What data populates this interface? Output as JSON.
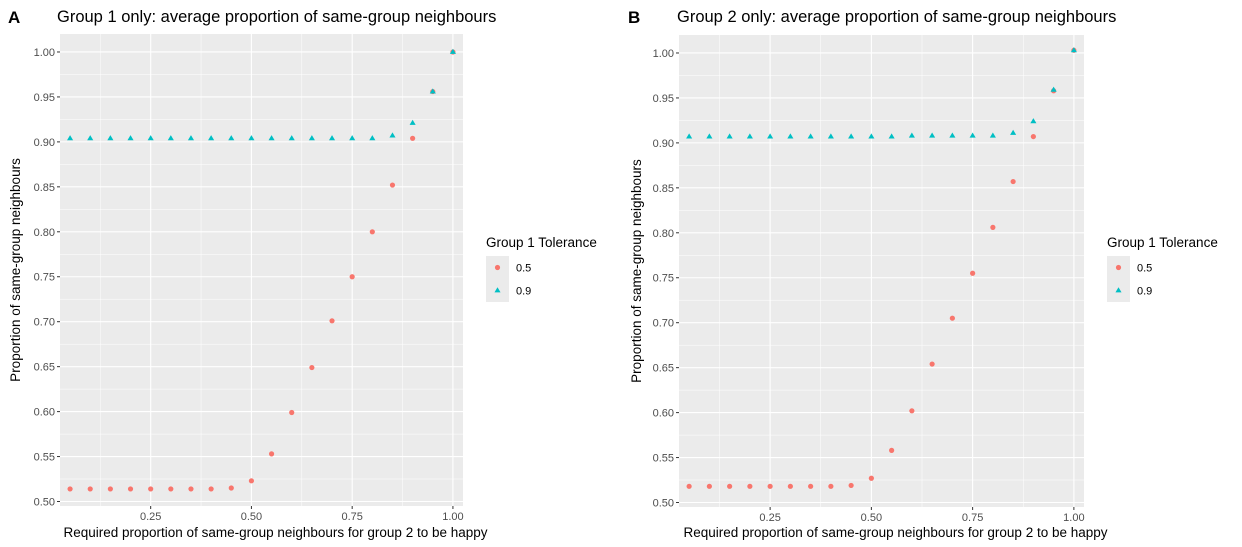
{
  "chart_data": [
    {
      "panel_label": "A",
      "type": "scatter",
      "title": "Group 1 only: average proportion of same-group neighbours",
      "xlabel": "Required proportion of same-group neighbours for group 2 to be happy",
      "ylabel": "Proportion of same-group neighbours",
      "xlim": [
        0.025,
        1.025
      ],
      "ylim": [
        0.495,
        1.02
      ],
      "x_ticks": [
        0.25,
        0.5,
        0.75,
        1.0
      ],
      "x_tick_labels": [
        "0.25",
        "0.50",
        "0.75",
        "1.00"
      ],
      "y_ticks": [
        0.5,
        0.55,
        0.6,
        0.65,
        0.7,
        0.75,
        0.8,
        0.85,
        0.9,
        0.95,
        1.0
      ],
      "y_tick_labels": [
        "0.50",
        "0.55",
        "0.60",
        "0.65",
        "0.70",
        "0.75",
        "0.80",
        "0.85",
        "0.90",
        "0.95",
        "1.00"
      ],
      "grid": true,
      "legend": {
        "title": "Group 1 Tolerance",
        "position": "right"
      },
      "x": [
        0.05,
        0.1,
        0.15,
        0.2,
        0.25,
        0.3,
        0.35,
        0.4,
        0.45,
        0.5,
        0.55,
        0.6,
        0.65,
        0.7,
        0.75,
        0.8,
        0.85,
        0.9,
        0.95,
        1.0
      ],
      "series": [
        {
          "name": "0.5",
          "color": "#F8766D",
          "marker": "circle",
          "values": [
            0.514,
            0.514,
            0.514,
            0.514,
            0.514,
            0.514,
            0.514,
            0.514,
            0.515,
            0.523,
            0.553,
            0.599,
            0.649,
            0.701,
            0.75,
            0.8,
            0.852,
            0.904,
            0.956,
            1.0
          ]
        },
        {
          "name": "0.9",
          "color": "#00BFC4",
          "marker": "triangle",
          "values": [
            0.904,
            0.904,
            0.904,
            0.904,
            0.904,
            0.904,
            0.904,
            0.904,
            0.904,
            0.904,
            0.904,
            0.904,
            0.904,
            0.904,
            0.904,
            0.904,
            0.907,
            0.921,
            0.956,
            1.0
          ]
        }
      ]
    },
    {
      "panel_label": "B",
      "type": "scatter",
      "title": "Group 2 only: average proportion of same-group neighbours",
      "xlabel": "Required proportion of same-group neighbours for group 2 to be happy",
      "ylabel": "Proportion of same-group neighbours",
      "xlim": [
        0.025,
        1.025
      ],
      "ylim": [
        0.495,
        1.02
      ],
      "x_ticks": [
        0.25,
        0.5,
        0.75,
        1.0
      ],
      "x_tick_labels": [
        "0.25",
        "0.50",
        "0.75",
        "1.00"
      ],
      "y_ticks": [
        0.5,
        0.55,
        0.6,
        0.65,
        0.7,
        0.75,
        0.8,
        0.85,
        0.9,
        0.95,
        1.0
      ],
      "y_tick_labels": [
        "0.50",
        "0.55",
        "0.60",
        "0.65",
        "0.70",
        "0.75",
        "0.80",
        "0.85",
        "0.90",
        "0.95",
        "1.00"
      ],
      "grid": true,
      "legend": {
        "title": "Group 1 Tolerance",
        "position": "right"
      },
      "x": [
        0.05,
        0.1,
        0.15,
        0.2,
        0.25,
        0.3,
        0.35,
        0.4,
        0.45,
        0.5,
        0.55,
        0.6,
        0.65,
        0.7,
        0.75,
        0.8,
        0.85,
        0.9,
        0.95,
        1.0
      ],
      "series": [
        {
          "name": "0.5",
          "color": "#F8766D",
          "marker": "circle",
          "values": [
            0.518,
            0.518,
            0.518,
            0.518,
            0.518,
            0.518,
            0.518,
            0.518,
            0.519,
            0.527,
            0.558,
            0.602,
            0.654,
            0.705,
            0.755,
            0.806,
            0.857,
            0.907,
            0.958,
            1.003
          ]
        },
        {
          "name": "0.9",
          "color": "#00BFC4",
          "marker": "triangle",
          "values": [
            0.907,
            0.907,
            0.907,
            0.907,
            0.907,
            0.907,
            0.907,
            0.907,
            0.907,
            0.907,
            0.907,
            0.908,
            0.908,
            0.908,
            0.908,
            0.908,
            0.911,
            0.924,
            0.959,
            1.003
          ]
        }
      ]
    }
  ]
}
